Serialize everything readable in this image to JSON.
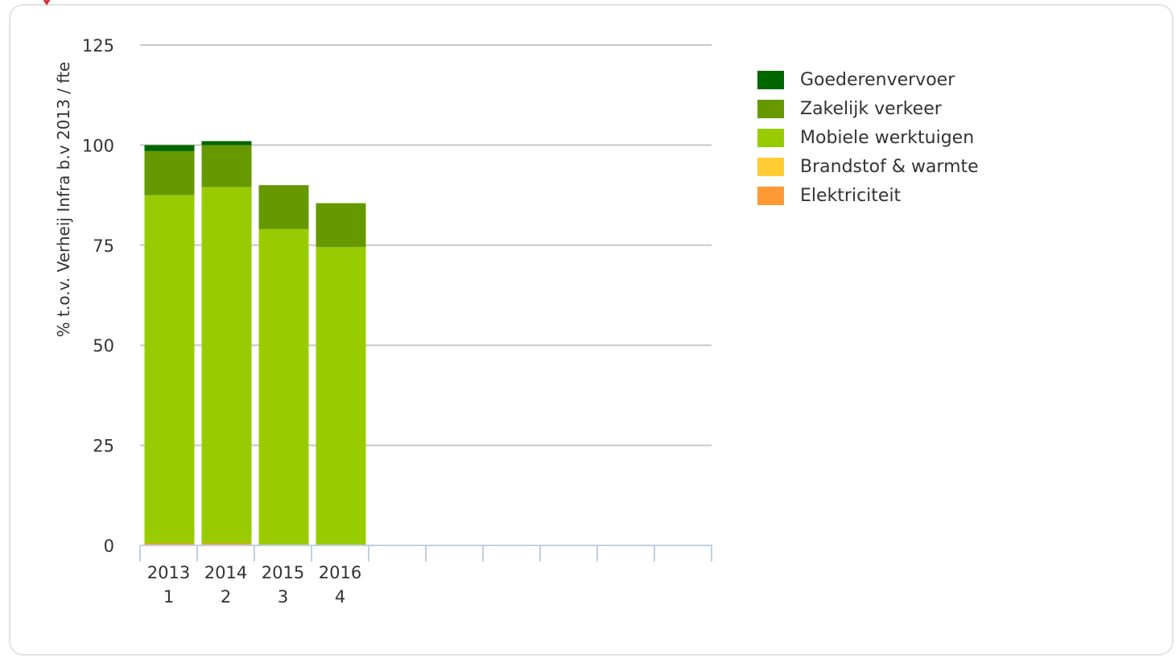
{
  "chart_data": {
    "type": "bar",
    "stacked": true,
    "ylabel": "% t.o.v. Verheij Infra b.v 2013 / fte",
    "ylim": [
      0,
      125
    ],
    "yticks": [
      0,
      25,
      50,
      75,
      100,
      125
    ],
    "grid": true,
    "legend_position": "top-right",
    "slots": 10,
    "categories": [
      {
        "year": "2013",
        "index": "1"
      },
      {
        "year": "2014",
        "index": "2"
      },
      {
        "year": "2015",
        "index": "3"
      },
      {
        "year": "2016",
        "index": "4"
      }
    ],
    "series": [
      {
        "name": "Elektriciteit",
        "color": "#ff9933",
        "values": [
          0.5,
          0.5,
          0.0,
          0.0
        ]
      },
      {
        "name": "Brandstof & warmte",
        "color": "#ffcc33",
        "values": [
          0.0,
          0.0,
          0.0,
          0.0
        ]
      },
      {
        "name": "Mobiele werktuigen",
        "color": "#99cc00",
        "values": [
          87.0,
          89.0,
          79.0,
          74.5
        ]
      },
      {
        "name": "Zakelijk verkeer",
        "color": "#669900",
        "values": [
          11.0,
          10.5,
          11.0,
          11.0
        ]
      },
      {
        "name": "Goederenvervoer",
        "color": "#006600",
        "values": [
          1.5,
          1.0,
          0.0,
          0.0
        ]
      }
    ],
    "legend_order": [
      "Goederenvervoer",
      "Zakelijk verkeer",
      "Mobiele werktuigen",
      "Brandstof & warmte",
      "Elektriciteit"
    ]
  }
}
